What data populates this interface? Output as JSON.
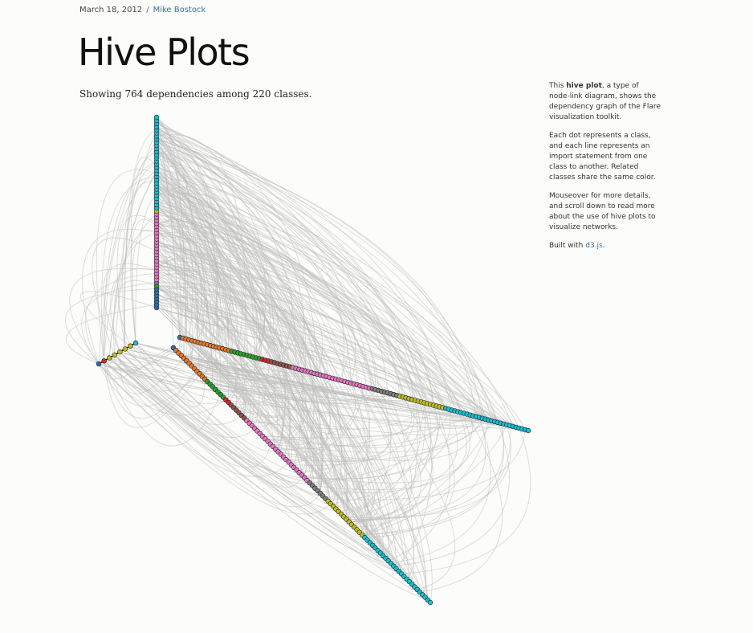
{
  "meta": {
    "date": "March 18, 2012",
    "separator": "/",
    "author": "Mike Bostock"
  },
  "title": "Hive Plots",
  "subtitle": "Showing 764 dependencies among 220 classes.",
  "aside": {
    "p1_pre": "This ",
    "p1_bold": "hive plot",
    "p1_post": ", a type of node-link diagram, shows the dependency graph of the Flare visualization toolkit.",
    "p2": "Each dot represents a class, and each line represents an import statement from one class to another. Related classes share the same color.",
    "p3": "Mouseover for more details, and scroll down to read more about the use of hive plots to visualize networks.",
    "p4_pre": "Built with ",
    "p4_link": "d3.js",
    "p4_post": "."
  },
  "colors": {
    "link_color": "#bdbdbd",
    "node_stroke": "#222222",
    "author_link": "#3a6fa8",
    "groups": {
      "steelblue": "#2f6fae",
      "orange": "#e6782a",
      "green": "#2ca02c",
      "red": "#d62728",
      "brown": "#8c564b",
      "pink": "#e377c2",
      "gray": "#7f7f7f",
      "olive": "#bcbd22",
      "cyan": "#17becf",
      "purple": "#9467bd"
    }
  },
  "hive": {
    "axes": [
      {
        "name": "vertical",
        "segments": [
          {
            "color": "steelblue",
            "count": 7
          },
          {
            "color": "green",
            "count": 1
          },
          {
            "color": "purple",
            "count": 1
          },
          {
            "color": "pink",
            "count": 22
          },
          {
            "color": "olive",
            "count": 1
          },
          {
            "color": "cyan",
            "count": 30
          }
        ]
      },
      {
        "name": "left",
        "segments": [
          {
            "color": "cyan",
            "count": 1
          },
          {
            "color": "olive",
            "count": 5
          },
          {
            "color": "red",
            "count": 1
          },
          {
            "color": "steelblue",
            "count": 1
          }
        ]
      },
      {
        "name": "right-upper",
        "segments": [
          {
            "color": "steelblue",
            "count": 1
          },
          {
            "color": "orange",
            "count": 16
          },
          {
            "color": "green",
            "count": 10
          },
          {
            "color": "red",
            "count": 3
          },
          {
            "color": "brown",
            "count": 7
          },
          {
            "color": "pink",
            "count": 26
          },
          {
            "color": "gray",
            "count": 9
          },
          {
            "color": "olive",
            "count": 15
          },
          {
            "color": "cyan",
            "count": 28
          }
        ]
      },
      {
        "name": "right-lower",
        "segments": [
          {
            "color": "steelblue",
            "count": 1
          },
          {
            "color": "orange",
            "count": 12
          },
          {
            "color": "green",
            "count": 7
          },
          {
            "color": "red",
            "count": 2
          },
          {
            "color": "brown",
            "count": 6
          },
          {
            "color": "pink",
            "count": 24
          },
          {
            "color": "gray",
            "count": 7
          },
          {
            "color": "olive",
            "count": 14
          },
          {
            "color": "cyan",
            "count": 26
          }
        ]
      }
    ]
  }
}
